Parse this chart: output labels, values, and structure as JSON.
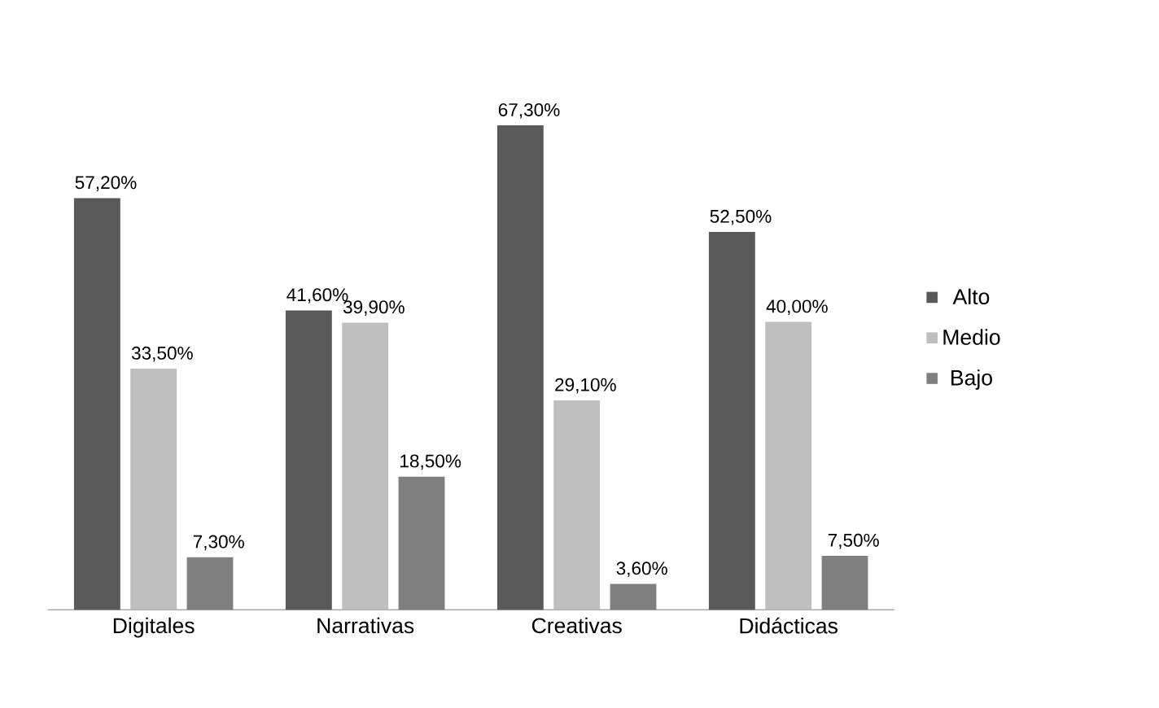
{
  "chart_data": {
    "type": "bar",
    "categories": [
      "Digitales",
      "Narrativas",
      "Creativas",
      "Didácticas"
    ],
    "series": [
      {
        "name": "Alto",
        "color": "#595959",
        "values": [
          57.2,
          41.6,
          67.3,
          52.5
        ],
        "value_labels": [
          "57,20%",
          "41,60%",
          "67,30%",
          "52,50%"
        ]
      },
      {
        "name": "Medio",
        "color": "#bfbfbf",
        "values": [
          33.5,
          39.9,
          29.1,
          40.0
        ],
        "value_labels": [
          "33,50%",
          "39,90%",
          "29,10%",
          "40,00%"
        ]
      },
      {
        "name": "Bajo",
        "color": "#808080",
        "values": [
          7.3,
          18.5,
          3.6,
          7.5
        ],
        "value_labels": [
          "7,30%",
          "18,50%",
          "3,60%",
          "7,50%"
        ]
      }
    ],
    "legend": "right"
  }
}
